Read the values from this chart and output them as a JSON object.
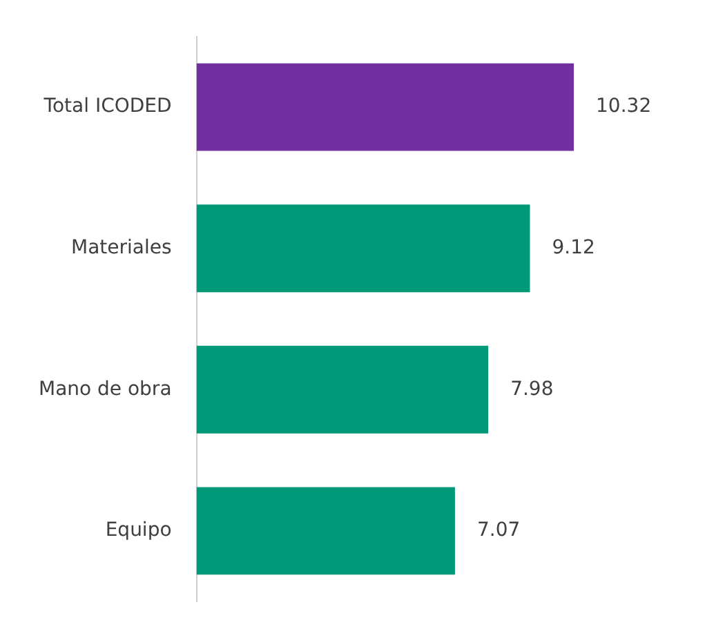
{
  "chart_data": {
    "type": "bar",
    "orientation": "horizontal",
    "categories": [
      "Total ICODED",
      "Materiales",
      "Mano de obra",
      "Equipo"
    ],
    "values": [
      10.32,
      9.12,
      7.98,
      7.07
    ],
    "colors": [
      "#7030a0",
      "#009977",
      "#009977",
      "#009977"
    ],
    "data_labels": true,
    "legend": false,
    "tick_labels": "y"
  }
}
